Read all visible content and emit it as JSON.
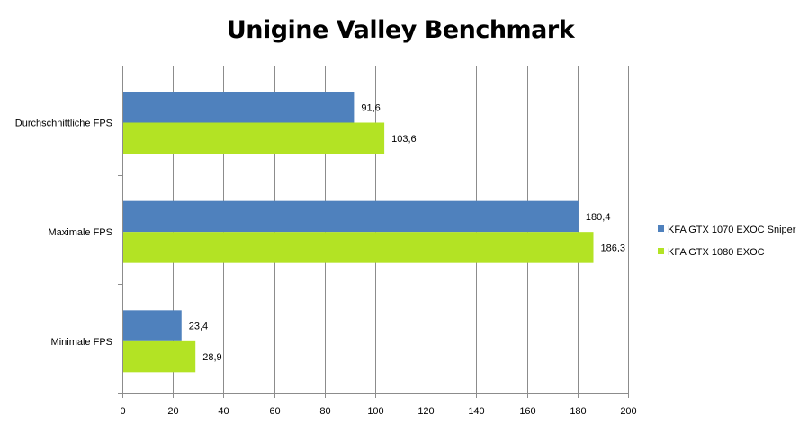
{
  "chart_data": {
    "type": "bar",
    "orientation": "horizontal",
    "title": "Unigine Valley Benchmark",
    "categories": [
      "Durchschnittliche FPS",
      "Maximale FPS",
      "Minimale FPS"
    ],
    "series": [
      {
        "name": "KFA GTX 1070 EXOC Sniper",
        "color": "#4F81BD",
        "values": [
          91.6,
          180.4,
          23.4
        ],
        "labels": [
          "91,6",
          "180,4",
          "23,4"
        ]
      },
      {
        "name": "KFA GTX 1080 EXOC",
        "color": "#B3E324",
        "values": [
          103.6,
          186.3,
          28.9
        ],
        "labels": [
          "103,6",
          "186,3",
          "28,9"
        ]
      }
    ],
    "xlim": [
      0,
      200
    ],
    "xticks": [
      "0",
      "20",
      "40",
      "60",
      "80",
      "100",
      "120",
      "140",
      "160",
      "180",
      "200"
    ],
    "grid": true,
    "legend_position": "right"
  }
}
